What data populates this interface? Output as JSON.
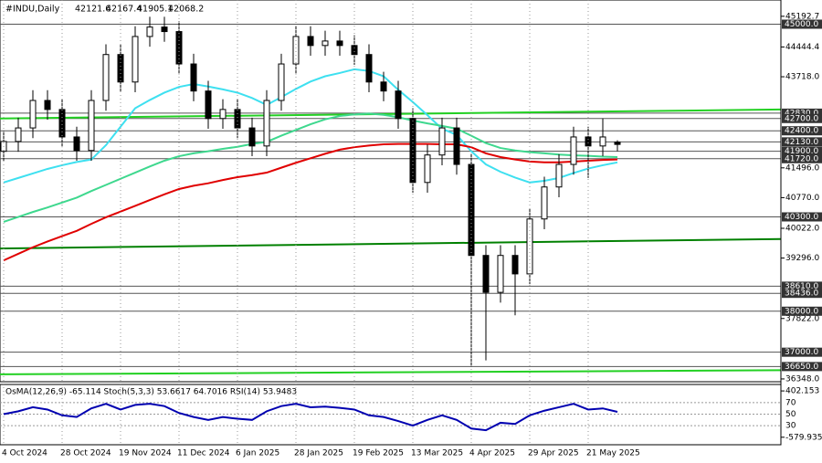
{
  "chart_data": {
    "type": "candlestick",
    "symbol": "#INDU,Daily",
    "categories": [
      "4 Oct 2024",
      null,
      null,
      null,
      "28 Oct 2024",
      null,
      null,
      null,
      "19 Nov 2024",
      null,
      null,
      null,
      "11 Dec 2024",
      null,
      null,
      null,
      "6 Jan 2025",
      null,
      null,
      null,
      "28 Jan 2025",
      null,
      null,
      null,
      "19 Feb 2025",
      null,
      null,
      null,
      "13 Mar 2025",
      null,
      null,
      null,
      "4 Apr 2025",
      null,
      null,
      null,
      "29 Apr 2025",
      null,
      null,
      null,
      "21 May 2025",
      null,
      null
    ],
    "open": [
      41900,
      42140,
      42470,
      43140,
      42920,
      42250,
      41920,
      43140,
      44260,
      43590,
      44700,
      44930,
      44820,
      44030,
      43370,
      42700,
      42920,
      42470,
      42030,
      43140,
      44030,
      44700,
      44480,
      44590,
      44480,
      44260,
      43590,
      43370,
      42700,
      41140,
      41810,
      42470,
      41580,
      39360,
      38460,
      39360,
      38910,
      40250,
      41030,
      41580,
      42250,
      42030,
      42121.6
    ],
    "high": [
      42390,
      42720,
      43390,
      43390,
      43170,
      42500,
      43390,
      44510,
      44510,
      44950,
      45180,
      45180,
      45070,
      44280,
      43620,
      43170,
      43170,
      42720,
      43390,
      44280,
      44950,
      44950,
      44840,
      44840,
      44730,
      44510,
      43840,
      43620,
      42950,
      42060,
      42720,
      42720,
      41830,
      39610,
      39610,
      39610,
      40500,
      41280,
      41830,
      42500,
      42500,
      42700,
      42167.4
    ],
    "low": [
      41650,
      41890,
      42220,
      42670,
      42000,
      41670,
      41670,
      42890,
      43340,
      43340,
      44450,
      44570,
      43780,
      43120,
      42450,
      42450,
      42220,
      41780,
      41780,
      42890,
      43780,
      44230,
      44230,
      44230,
      44010,
      43340,
      43120,
      42450,
      40890,
      40890,
      41560,
      41330,
      36650,
      36800,
      38210,
      37900,
      38660,
      40000,
      40780,
      41330,
      41250,
      41780,
      41905.1
    ],
    "close": [
      42140,
      42470,
      43140,
      42920,
      42250,
      41920,
      43140,
      44260,
      43590,
      44700,
      44930,
      44820,
      44030,
      43370,
      42700,
      42920,
      42470,
      42030,
      43140,
      44030,
      44700,
      44480,
      44590,
      44480,
      44260,
      43590,
      43370,
      42700,
      41140,
      41810,
      42470,
      41580,
      39360,
      38460,
      39360,
      38910,
      40250,
      41030,
      41580,
      42250,
      42030,
      42250,
      42068.2
    ],
    "series": [
      {
        "color": "#3ee0f0",
        "values": [
          41140,
          41250,
          41360,
          41470,
          41560,
          41640,
          41700,
          42050,
          42500,
          42950,
          43150,
          43330,
          43470,
          43540,
          43480,
          43410,
          43330,
          43200,
          43030,
          43220,
          43420,
          43600,
          43730,
          43810,
          43900,
          43860,
          43730,
          43400,
          43100,
          42780,
          42450,
          42300,
          41900,
          41580,
          41400,
          41260,
          41140,
          41180,
          41250,
          41370,
          41480,
          41560,
          41630
        ]
      },
      {
        "color": "#3ed88e",
        "values": [
          40180,
          40300,
          40420,
          40530,
          40650,
          40770,
          40930,
          41080,
          41230,
          41380,
          41530,
          41670,
          41780,
          41850,
          41900,
          41960,
          42010,
          42080,
          42130,
          42280,
          42420,
          42560,
          42680,
          42760,
          42800,
          42820,
          42790,
          42730,
          42650,
          42580,
          42520,
          42450,
          42280,
          42100,
          41980,
          41920,
          41880,
          41850,
          41820,
          41800,
          41790,
          41770,
          41760
        ]
      },
      {
        "color": "#e00000",
        "values": [
          39240,
          39400,
          39560,
          39700,
          39830,
          39960,
          40130,
          40290,
          40430,
          40570,
          40710,
          40850,
          40980,
          41060,
          41120,
          41200,
          41270,
          41320,
          41380,
          41500,
          41620,
          41730,
          41840,
          41940,
          42000,
          42040,
          42070,
          42080,
          42080,
          42080,
          42070,
          42070,
          42000,
          41850,
          41760,
          41700,
          41650,
          41630,
          41630,
          41650,
          41670,
          41690,
          41700
        ]
      }
    ],
    "trend_lines": [
      {
        "color": "#22d022",
        "values": [
          42700,
          42920
        ]
      },
      {
        "color": "#008000",
        "values": [
          39530,
          39760
        ]
      },
      {
        "color": "#22d022",
        "values": [
          36460,
          36560
        ]
      }
    ],
    "ylim": [
      36280,
      45590
    ],
    "yticks": [
      45192.7,
      44444.4,
      {
        "value": 43718,
        "label": "43718.0"
      },
      {
        "value": 41496,
        "label": "41496.0"
      },
      {
        "value": 40770,
        "label": "40770.0"
      },
      {
        "value": 40022,
        "label": "40022.0"
      },
      {
        "value": 39296,
        "label": "39296.0"
      },
      {
        "value": 37822,
        "label": "37822.0"
      },
      {
        "value": 36348,
        "label": "36348.0"
      }
    ],
    "levels": [
      {
        "value": 45000,
        "label": "45000.0"
      },
      {
        "value": 42830,
        "label": "42830.0"
      },
      {
        "value": 42700,
        "label": "42700.0"
      },
      {
        "value": 42400,
        "label": "42400.0"
      },
      {
        "value": 42130,
        "label": "42130.0"
      },
      {
        "value": 41900,
        "label": "41900.0"
      },
      {
        "value": 41720,
        "label": "41720.0"
      },
      {
        "value": 40300,
        "label": "40300.0"
      },
      {
        "value": 38610,
        "label": "38610.0"
      },
      {
        "value": 38436,
        "label": "38436.0"
      },
      {
        "value": 38000,
        "label": "38000.0"
      },
      {
        "value": 37000,
        "label": "37000.0"
      },
      {
        "value": 36650,
        "label": "36650.0"
      }
    ],
    "indicator": {
      "title": "OsMA(12,26,9) -65.114  Stoch(5,3,3) 53.6617 64.7016  RSI(14) 53.9483",
      "ylim": [
        -700,
        520
      ],
      "yticks": [
        402.153,
        -579.935
      ],
      "rsi_ylim": [
        0,
        100
      ],
      "rsi_ticks": [
        70,
        50,
        30
      ],
      "rsi_color": "#0000b0",
      "rsi": [
        50,
        55,
        62,
        58,
        48,
        45,
        60,
        68,
        58,
        66,
        68,
        64,
        52,
        45,
        40,
        45,
        42,
        40,
        55,
        64,
        68,
        62,
        63,
        61,
        58,
        48,
        45,
        38,
        30,
        40,
        48,
        40,
        25,
        22,
        35,
        33,
        48,
        56,
        62,
        68,
        58,
        60,
        53.9483
      ]
    }
  }
}
